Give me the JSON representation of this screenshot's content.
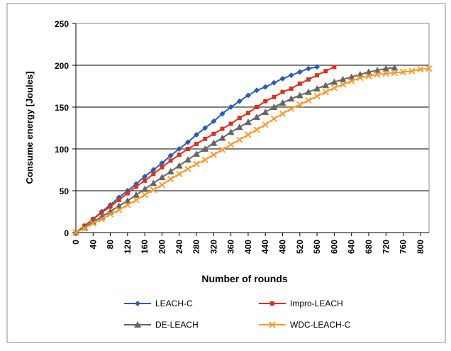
{
  "chart_data": {
    "type": "line",
    "xlabel": "Number of rounds",
    "ylabel": "Consume energy [Joules]",
    "xlim": [
      0,
      820
    ],
    "ylim": [
      0,
      250
    ],
    "xticks": [
      0,
      40,
      80,
      120,
      160,
      200,
      240,
      280,
      320,
      360,
      400,
      440,
      480,
      520,
      560,
      600,
      640,
      680,
      720,
      760,
      800
    ],
    "yticks": [
      0,
      50,
      100,
      150,
      200,
      250
    ],
    "grid": true,
    "legend": "bottom",
    "series": [
      {
        "name": "LEACH-C",
        "color": "#2a5db0",
        "marker": "diamond",
        "x": [
          0,
          20,
          40,
          60,
          80,
          100,
          120,
          140,
          160,
          180,
          200,
          220,
          240,
          260,
          280,
          300,
          320,
          340,
          360,
          380,
          400,
          420,
          440,
          460,
          480,
          500,
          520,
          540,
          560
        ],
        "values": [
          0,
          8,
          16,
          25,
          33,
          42,
          50,
          58,
          67,
          75,
          83,
          92,
          100,
          108,
          117,
          125,
          133,
          142,
          150,
          157,
          164,
          170,
          174,
          179,
          184,
          188,
          192,
          196,
          198
        ]
      },
      {
        "name": "Impro-LEACH",
        "color": "#d8321f",
        "marker": "square",
        "x": [
          0,
          20,
          40,
          60,
          80,
          100,
          120,
          140,
          160,
          180,
          200,
          220,
          240,
          260,
          280,
          300,
          320,
          340,
          360,
          380,
          400,
          420,
          440,
          460,
          480,
          500,
          520,
          540,
          560,
          580,
          600
        ],
        "values": [
          0,
          8,
          16,
          24,
          31,
          39,
          47,
          55,
          62,
          70,
          78,
          86,
          93,
          100,
          106,
          112,
          118,
          124,
          130,
          137,
          143,
          150,
          157,
          162,
          168,
          172,
          178,
          183,
          188,
          193,
          198
        ]
      },
      {
        "name": "DE-LEACH",
        "color": "#666666",
        "marker": "triangle",
        "x": [
          0,
          20,
          40,
          60,
          80,
          100,
          120,
          140,
          160,
          180,
          200,
          220,
          240,
          260,
          280,
          300,
          320,
          340,
          360,
          380,
          400,
          420,
          440,
          460,
          480,
          500,
          520,
          540,
          560,
          580,
          600,
          620,
          640,
          660,
          680,
          700,
          720,
          740
        ],
        "values": [
          0,
          6,
          13,
          19,
          25,
          32,
          38,
          45,
          52,
          59,
          66,
          73,
          80,
          87,
          94,
          100,
          107,
          113,
          120,
          126,
          132,
          138,
          144,
          150,
          155,
          160,
          164,
          168,
          172,
          176,
          180,
          183,
          186,
          189,
          192,
          194,
          196,
          197
        ]
      },
      {
        "name": "WDC-LEACH-C",
        "color": "#f79a2c",
        "marker": "x",
        "x": [
          0,
          20,
          40,
          60,
          80,
          100,
          120,
          140,
          160,
          180,
          200,
          220,
          240,
          260,
          280,
          300,
          320,
          340,
          360,
          380,
          400,
          420,
          440,
          460,
          480,
          500,
          520,
          540,
          560,
          580,
          600,
          620,
          640,
          660,
          680,
          700,
          720,
          740,
          760,
          780,
          800,
          820
        ],
        "values": [
          0,
          5,
          11,
          16,
          22,
          27,
          33,
          39,
          45,
          51,
          57,
          64,
          70,
          76,
          82,
          87,
          93,
          99,
          105,
          111,
          117,
          123,
          129,
          136,
          142,
          148,
          153,
          158,
          163,
          168,
          173,
          177,
          181,
          185,
          187,
          189,
          190,
          191,
          192,
          193,
          195,
          196
        ]
      }
    ]
  }
}
